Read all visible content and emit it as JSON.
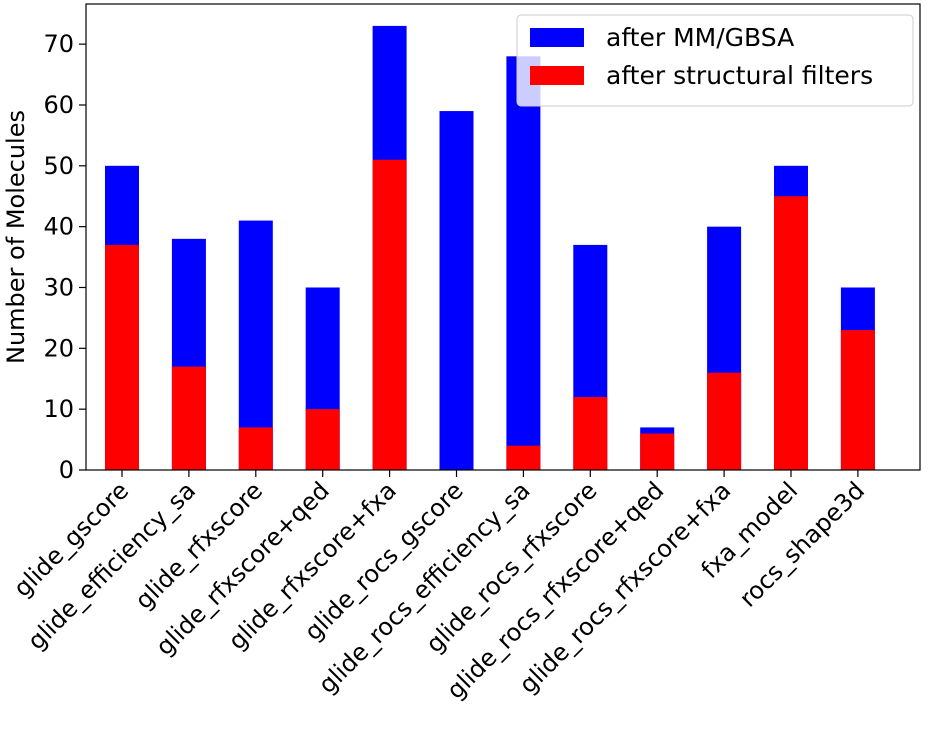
{
  "chart_data": {
    "type": "bar",
    "stacked": "overlay",
    "title": "",
    "xlabel": "",
    "ylabel": "Number of Molecules",
    "ylim": [
      0,
      76.6
    ],
    "yticks": [
      0,
      10,
      20,
      30,
      40,
      50,
      60,
      70
    ],
    "grid": false,
    "legend_position": "top-right",
    "categories": [
      "glide_gscore",
      "glide_efficiency_sa",
      "glide_rfxscore",
      "glide_rfxscore+qed",
      "glide_rfxscore+fxa",
      "glide_rocs_gscore",
      "glide_rocs_efficiency_sa",
      "glide_rocs_rfxscore",
      "glide_rocs_rfxscore+qed",
      "glide_rocs_rfxscore+fxa",
      "fxa_model",
      "rocs_shape3d"
    ],
    "series": [
      {
        "name": "after MM/GBSA",
        "color": "#0000ff",
        "values": [
          50,
          38,
          41,
          30,
          73,
          59,
          68,
          37,
          7,
          40,
          50,
          30
        ]
      },
      {
        "name": "after structural filters",
        "color": "#ff0000",
        "values": [
          37,
          17,
          7,
          10,
          51,
          0,
          4,
          12,
          6,
          16,
          45,
          23
        ]
      }
    ]
  }
}
